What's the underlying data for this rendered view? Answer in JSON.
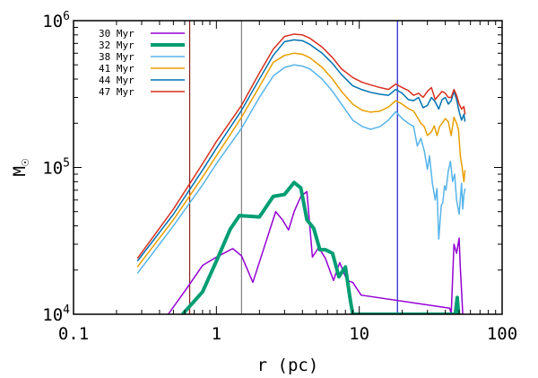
{
  "chart_data": {
    "type": "line",
    "title": "",
    "xlabel": "r (pc)",
    "ylabel": "M",
    "ylabel_symbol": "☉",
    "xscale": "log",
    "yscale": "log",
    "xlim": [
      0.1,
      100
    ],
    "ylim": [
      10000,
      1000000
    ],
    "grid": false,
    "legend_position": "top-left",
    "x_ticks": [
      {
        "value": 0.1,
        "label": "0.1"
      },
      {
        "value": 1,
        "label": "1"
      },
      {
        "value": 10,
        "label": "10"
      },
      {
        "value": 100,
        "label": "100"
      }
    ],
    "y_ticks": [
      {
        "value": 10000,
        "base": "10",
        "exp": "4"
      },
      {
        "value": 100000,
        "base": "10",
        "exp": "5"
      },
      {
        "value": 1000000,
        "base": "10",
        "exp": "6"
      }
    ],
    "vertical_lines": [
      {
        "x": 0.65,
        "color": "#8b1a1a"
      },
      {
        "x": 1.5,
        "color": "#808080"
      },
      {
        "x": 18.5,
        "color": "#1a1acd"
      }
    ],
    "series": [
      {
        "name": "30 Myr",
        "color": "#9400d3",
        "width": 1.5,
        "points": [
          [
            0.46,
            10000
          ],
          [
            0.62,
            15000
          ],
          [
            0.8,
            21500
          ],
          [
            1.0,
            24500
          ],
          [
            1.3,
            28000
          ],
          [
            1.5,
            25000
          ],
          [
            1.8,
            16500
          ],
          [
            2.3,
            34500
          ],
          [
            2.6,
            50000
          ],
          [
            2.9,
            44000
          ],
          [
            3.2,
            37500
          ],
          [
            3.5,
            50000
          ],
          [
            3.9,
            63500
          ],
          [
            4.3,
            68500
          ],
          [
            4.7,
            24500
          ],
          [
            5.2,
            28500
          ],
          [
            5.8,
            24000
          ],
          [
            6.6,
            17000
          ],
          [
            7.3,
            22500
          ],
          [
            8.2,
            17000
          ],
          [
            9.0,
            16500
          ],
          [
            10.3,
            13500
          ],
          [
            43,
            11000
          ],
          [
            44,
            10000
          ],
          [
            46,
            30000
          ],
          [
            48,
            26000
          ],
          [
            50,
            33000
          ],
          [
            51,
            20500
          ],
          [
            52,
            14500
          ],
          [
            53,
            10000
          ]
        ]
      },
      {
        "name": "32 Myr",
        "color": "#009e73",
        "width": 4,
        "points": [
          [
            0.58,
            10000
          ],
          [
            0.8,
            14200
          ],
          [
            1.0,
            23000
          ],
          [
            1.25,
            38000
          ],
          [
            1.45,
            47000
          ],
          [
            2.0,
            46000
          ],
          [
            2.5,
            63500
          ],
          [
            3.0,
            65500
          ],
          [
            3.5,
            79000
          ],
          [
            3.9,
            72500
          ],
          [
            4.3,
            44000
          ],
          [
            4.8,
            38500
          ],
          [
            5.3,
            27500
          ],
          [
            5.8,
            27500
          ],
          [
            6.5,
            26000
          ],
          [
            7.2,
            18000
          ],
          [
            8.0,
            21000
          ],
          [
            8.6,
            13000
          ],
          [
            9.0,
            10000
          ],
          [
            47,
            10000
          ],
          [
            48.5,
            13000
          ],
          [
            49.5,
            10000
          ]
        ]
      },
      {
        "name": "38 Myr",
        "color": "#56b4e9",
        "width": 1.5,
        "points": [
          [
            0.28,
            19000
          ],
          [
            0.5,
            40000
          ],
          [
            0.8,
            76000
          ],
          [
            1.0,
            106000
          ],
          [
            1.5,
            185000
          ],
          [
            2.0,
            300000
          ],
          [
            2.5,
            420000
          ],
          [
            3.0,
            480000
          ],
          [
            3.5,
            500000
          ],
          [
            4.0,
            490000
          ],
          [
            4.5,
            470000
          ],
          [
            5.5,
            400000
          ],
          [
            6.5,
            330000
          ],
          [
            7.5,
            270000
          ],
          [
            9.0,
            210000
          ],
          [
            10.5,
            190000
          ],
          [
            12,
            182000
          ],
          [
            14,
            190000
          ],
          [
            16,
            210000
          ],
          [
            18,
            240000
          ],
          [
            20,
            215000
          ],
          [
            22,
            200000
          ],
          [
            24,
            190000
          ],
          [
            25.5,
            140000
          ],
          [
            27,
            158000
          ],
          [
            28.5,
            130000
          ],
          [
            30,
            97000
          ],
          [
            31,
            120000
          ],
          [
            32.5,
            78000
          ],
          [
            34,
            60000
          ],
          [
            35,
            72000
          ],
          [
            36,
            32500
          ],
          [
            37.5,
            55000
          ],
          [
            38.5,
            58000
          ],
          [
            39.5,
            75000
          ],
          [
            40.5,
            70000
          ],
          [
            42,
            95000
          ],
          [
            43.5,
            110000
          ],
          [
            45,
            80000
          ],
          [
            46.5,
            90000
          ],
          [
            48,
            60000
          ],
          [
            50,
            48000
          ],
          [
            52,
            78000
          ],
          [
            53,
            52000
          ],
          [
            54,
            65000
          ],
          [
            55,
            72000
          ]
        ]
      },
      {
        "name": "41 Myr",
        "color": "#e69f00",
        "width": 1.5,
        "points": [
          [
            0.28,
            21000
          ],
          [
            0.5,
            44000
          ],
          [
            0.8,
            86000
          ],
          [
            1.0,
            120000
          ],
          [
            1.5,
            220000
          ],
          [
            2.0,
            355000
          ],
          [
            2.5,
            520000
          ],
          [
            3.0,
            580000
          ],
          [
            3.5,
            600000
          ],
          [
            4.0,
            590000
          ],
          [
            4.5,
            560000
          ],
          [
            5.5,
            480000
          ],
          [
            6.5,
            400000
          ],
          [
            7.5,
            330000
          ],
          [
            9.0,
            270000
          ],
          [
            10.5,
            245000
          ],
          [
            12,
            238000
          ],
          [
            14,
            242000
          ],
          [
            16,
            258000
          ],
          [
            18,
            285000
          ],
          [
            20,
            270000
          ],
          [
            22,
            252000
          ],
          [
            24,
            242000
          ],
          [
            25.5,
            220000
          ],
          [
            27,
            200000
          ],
          [
            28.5,
            190000
          ],
          [
            30,
            165000
          ],
          [
            32,
            175000
          ],
          [
            33.5,
            192000
          ],
          [
            35,
            165000
          ],
          [
            36.5,
            190000
          ],
          [
            38,
            200000
          ],
          [
            40,
            215000
          ],
          [
            42,
            205000
          ],
          [
            44,
            165000
          ],
          [
            46,
            220000
          ],
          [
            48,
            200000
          ],
          [
            49.5,
            180000
          ],
          [
            51,
            120000
          ],
          [
            52.5,
            100000
          ],
          [
            54,
            80000
          ],
          [
            55,
            96000
          ]
        ]
      },
      {
        "name": "44 Myr",
        "color": "#0072b2",
        "width": 1.5,
        "points": [
          [
            0.28,
            23000
          ],
          [
            0.5,
            48000
          ],
          [
            0.8,
            96000
          ],
          [
            1.0,
            135000
          ],
          [
            1.5,
            245000
          ],
          [
            2.0,
            400000
          ],
          [
            2.5,
            580000
          ],
          [
            3.0,
            720000
          ],
          [
            3.5,
            740000
          ],
          [
            4.0,
            730000
          ],
          [
            4.5,
            690000
          ],
          [
            5.5,
            600000
          ],
          [
            6.5,
            510000
          ],
          [
            7.5,
            430000
          ],
          [
            9.0,
            360000
          ],
          [
            10.5,
            338000
          ],
          [
            12,
            325000
          ],
          [
            14,
            315000
          ],
          [
            16,
            310000
          ],
          [
            18,
            340000
          ],
          [
            20,
            320000
          ],
          [
            22,
            290000
          ],
          [
            24,
            285000
          ],
          [
            26,
            300000
          ],
          [
            28,
            255000
          ],
          [
            30,
            265000
          ],
          [
            32,
            300000
          ],
          [
            34,
            280000
          ],
          [
            36,
            250000
          ],
          [
            38,
            290000
          ],
          [
            40,
            300000
          ],
          [
            42,
            270000
          ],
          [
            44,
            285000
          ],
          [
            46,
            330000
          ],
          [
            48,
            290000
          ],
          [
            50,
            240000
          ],
          [
            52,
            210000
          ],
          [
            54,
            230000
          ],
          [
            55,
            205000
          ]
        ]
      },
      {
        "name": "47 Myr",
        "color": "#d7301f",
        "width": 1.5,
        "points": [
          [
            0.28,
            24000
          ],
          [
            0.5,
            52000
          ],
          [
            0.8,
            106000
          ],
          [
            1.0,
            150000
          ],
          [
            1.5,
            265000
          ],
          [
            2.0,
            440000
          ],
          [
            2.5,
            640000
          ],
          [
            3.0,
            780000
          ],
          [
            3.5,
            810000
          ],
          [
            4.0,
            800000
          ],
          [
            4.5,
            760000
          ],
          [
            5.5,
            660000
          ],
          [
            6.5,
            560000
          ],
          [
            7.5,
            470000
          ],
          [
            9.0,
            410000
          ],
          [
            10.5,
            380000
          ],
          [
            12,
            365000
          ],
          [
            14,
            350000
          ],
          [
            16,
            340000
          ],
          [
            18,
            370000
          ],
          [
            20,
            350000
          ],
          [
            22,
            335000
          ],
          [
            24,
            310000
          ],
          [
            26,
            320000
          ],
          [
            28,
            300000
          ],
          [
            30,
            330000
          ],
          [
            32,
            350000
          ],
          [
            34,
            290000
          ],
          [
            36,
            310000
          ],
          [
            38,
            330000
          ],
          [
            40,
            320000
          ],
          [
            42,
            300000
          ],
          [
            44,
            300000
          ],
          [
            46,
            340000
          ],
          [
            48,
            310000
          ],
          [
            50,
            270000
          ],
          [
            52,
            250000
          ],
          [
            54,
            260000
          ],
          [
            55,
            230000
          ]
        ]
      }
    ]
  }
}
